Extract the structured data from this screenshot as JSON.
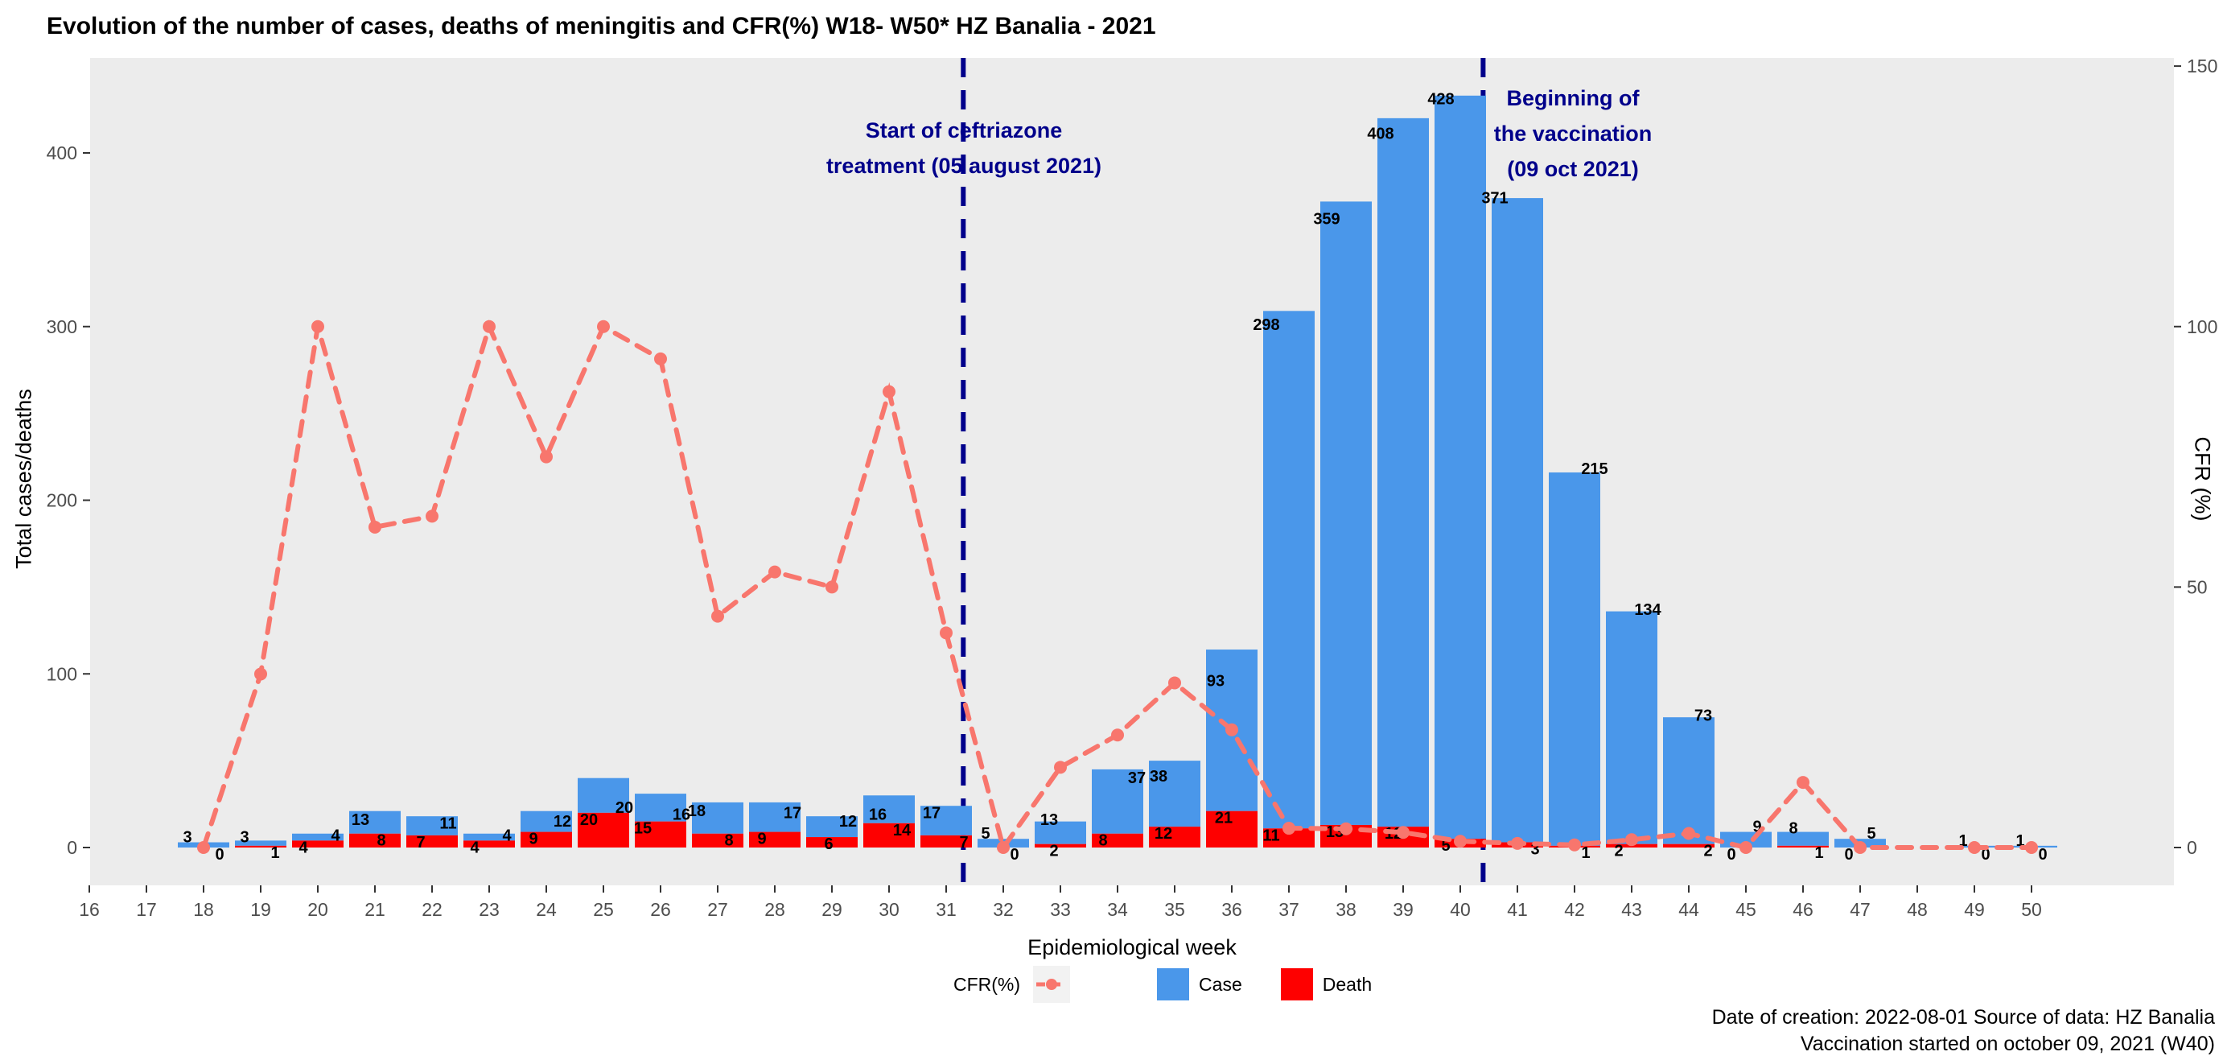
{
  "legend": {
    "cfr_label": "CFR(%)",
    "case_label": "Case",
    "death_label": "Death"
  },
  "annotations": {
    "treatment": {
      "line1": "Start of ceftriazone",
      "line2": "treatment (05 august 2021)"
    },
    "vaccination": {
      "line1": "Beginning of",
      "line2": "the vaccination",
      "line3": "(09 oct 2021)"
    }
  },
  "footer": {
    "line1": "Date of creation: 2022-08-01  Source of data: HZ Banalia",
    "line2": "Vaccination started on october 09, 2021 (W40)"
  },
  "chart_data": {
    "type": "bar",
    "title": "Evolution of the number of cases, deaths of meningitis and CFR(%) W18- W50* HZ Banalia - 2021",
    "xlabel": "Epidemiological week",
    "ylabel_left": "Total cases/deaths",
    "ylabel_right": "CFR (%)",
    "stacked": true,
    "ylim_left": [
      0,
      433
    ],
    "ylim_right": [
      0,
      150
    ],
    "right_axis_scale": 3,
    "x_ticks": [
      16,
      17,
      18,
      19,
      20,
      21,
      22,
      23,
      24,
      25,
      26,
      27,
      28,
      29,
      30,
      31,
      32,
      33,
      34,
      35,
      36,
      37,
      38,
      39,
      40,
      41,
      42,
      43,
      44,
      45,
      46,
      47,
      48,
      49,
      50
    ],
    "y_left_ticks": [
      0,
      100,
      200,
      300,
      400
    ],
    "y_right_ticks": [
      0,
      50,
      100,
      150
    ],
    "weeks": [
      18,
      19,
      20,
      21,
      22,
      23,
      24,
      25,
      26,
      27,
      28,
      29,
      30,
      31,
      32,
      33,
      34,
      35,
      36,
      37,
      38,
      39,
      40,
      41,
      42,
      43,
      44,
      45,
      46,
      47,
      48,
      49,
      50
    ],
    "cases": [
      3,
      3,
      4,
      13,
      11,
      4,
      12,
      20,
      16,
      18,
      17,
      12,
      16,
      17,
      5,
      13,
      37,
      38,
      93,
      298,
      359,
      408,
      428,
      371,
      215,
      134,
      73,
      9,
      8,
      5,
      null,
      1,
      1
    ],
    "deaths": [
      0,
      1,
      4,
      8,
      7,
      4,
      9,
      20,
      15,
      8,
      9,
      6,
      14,
      7,
      0,
      2,
      8,
      12,
      21,
      11,
      13,
      12,
      5,
      3,
      1,
      2,
      2,
      0,
      1,
      0,
      null,
      0,
      0
    ],
    "cfr": [
      0,
      33.3,
      100,
      61.5,
      63.6,
      100,
      75,
      100,
      93.8,
      44.4,
      52.9,
      50,
      87.5,
      41.2,
      0,
      15.4,
      21.6,
      31.6,
      22.6,
      3.7,
      3.6,
      2.9,
      1.2,
      0.8,
      0.5,
      1.5,
      2.7,
      0,
      12.5,
      0,
      null,
      0,
      0
    ],
    "case_label_dx": [
      -20,
      -20,
      22,
      -18,
      20,
      22,
      20,
      26,
      26,
      -26,
      22,
      20,
      -14,
      -18,
      -22,
      -14,
      24,
      -20,
      -20,
      -28,
      -24,
      -28,
      -24,
      -28,
      25,
      20,
      18,
      14,
      -12,
      14,
      0,
      -14,
      -14
    ],
    "death_label_dx": [
      20,
      18,
      -18,
      8,
      -14,
      -18,
      -16,
      -18,
      -22,
      14,
      -16,
      -4,
      16,
      22,
      14,
      -8,
      -18,
      -14,
      -10,
      -22,
      -14,
      -12,
      -18,
      22,
      14,
      -16,
      24,
      -18,
      20,
      -14,
      0,
      14,
      14
    ],
    "vlines": [
      {
        "x": 31.3,
        "name": "ceftriazone-treatment-start"
      },
      {
        "x": 40.4,
        "name": "vaccination-start"
      }
    ],
    "series": [
      {
        "name": "Case",
        "type": "bar",
        "axis": "left"
      },
      {
        "name": "Death",
        "type": "bar",
        "axis": "left"
      },
      {
        "name": "CFR(%)",
        "type": "line",
        "axis": "right"
      }
    ],
    "colors": {
      "case": "#4A97EA",
      "death": "#FE0000",
      "cfr_line": "#F8766D",
      "vline": "#00008B",
      "annotation": "#00008B",
      "panel_bg": "#ECECEC",
      "tick_text": "#4d4d4d"
    },
    "legend_position": "bottom",
    "grid": false
  }
}
